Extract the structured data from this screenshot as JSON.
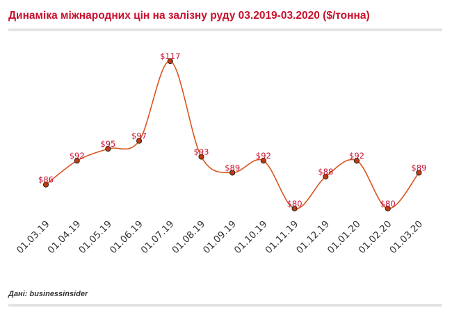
{
  "header": {
    "title": "Динаміка міжнародних цін на залізну руду 03.2019-03.2020 ($/тонна)"
  },
  "footer": {
    "source": "Дані: businessinsider"
  },
  "colors": {
    "title": "#c8102e",
    "line": "#d9541e",
    "marker_fill": "#c23b0e",
    "marker_stroke": "#222222",
    "value_label": "#c8102e",
    "rule": "#e3e3e3"
  },
  "chart_data": {
    "type": "line",
    "title": "Динаміка міжнародних цін на залізну руду 03.2019-03.2020 ($/тонна)",
    "xlabel": "",
    "ylabel": "",
    "categories": [
      "01.03.19",
      "01.04.19",
      "01.05.19",
      "01.06.19",
      "01.07.19",
      "01.08.19",
      "01.09.19",
      "01.10.19",
      "01.11.19",
      "01.12.19",
      "01.01.20",
      "01.02.20",
      "01.03.20"
    ],
    "series": [
      {
        "values": [
          86,
          92,
          95,
          97,
          117,
          93,
          89,
          92,
          80,
          88,
          92,
          80,
          89
        ],
        "labels": [
          "$86",
          "$92",
          "$95",
          "$97",
          "$117",
          "$93",
          "$89",
          "$92",
          "$80",
          "$88",
          "$92",
          "$80",
          "$89"
        ]
      }
    ],
    "ylim": [
      80,
      117
    ],
    "grid": false,
    "smooth": true,
    "legend": "none"
  }
}
